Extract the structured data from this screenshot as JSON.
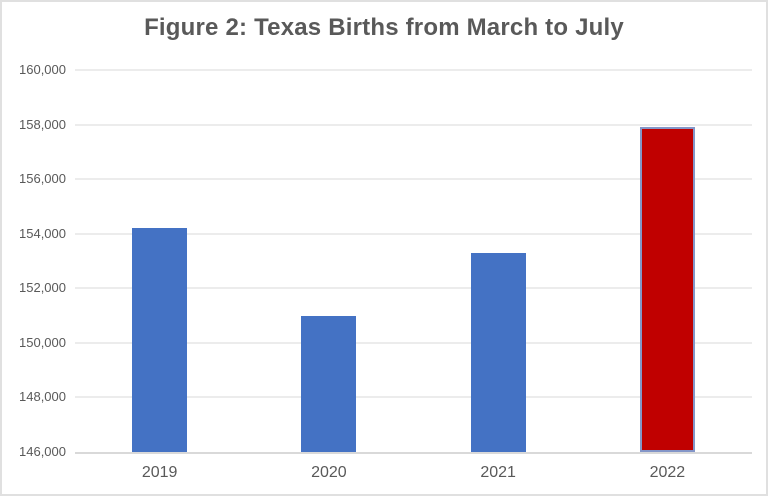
{
  "chart_data": {
    "type": "bar",
    "title": "Figure 2: Texas Births from March to July",
    "categories": [
      "2019",
      "2020",
      "2021",
      "2022"
    ],
    "values": [
      154200,
      151000,
      153300,
      157900
    ],
    "xlabel": "",
    "ylabel": "",
    "ylim": [
      146000,
      160000
    ],
    "ytick_step": 2000,
    "ytick_values": [
      146000,
      148000,
      150000,
      152000,
      154000,
      156000,
      158000,
      160000
    ],
    "ytick_labels": [
      "146,000",
      "148,000",
      "150,000",
      "152,000",
      "154,000",
      "156,000",
      "158,000",
      "160,000"
    ],
    "grid": true,
    "legend": "none",
    "bar_colors": [
      "#4472C4",
      "#4472C4",
      "#4472C4",
      "#C00000"
    ],
    "highlight": {
      "index": 3,
      "border_color": "#8496C8"
    },
    "colors": {
      "title_text": "#595959",
      "axis_text": "#595959",
      "gridline": "#ECECEC",
      "axis_line": "#D9D9D9",
      "frame_border": "#E0E0E0",
      "background": "#FFFFFF"
    }
  }
}
